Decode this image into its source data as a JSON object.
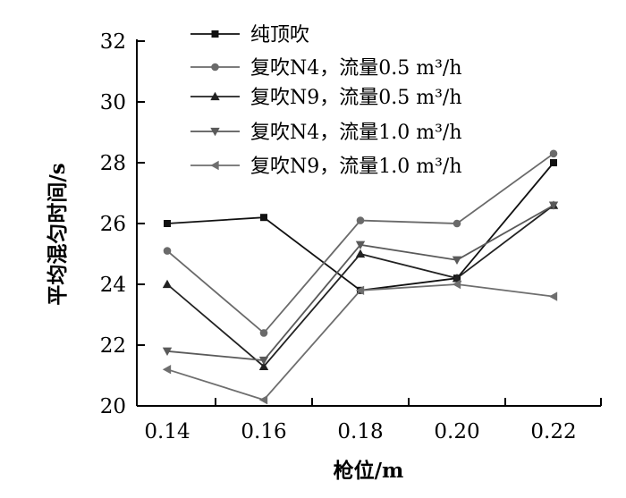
{
  "chart_data": {
    "type": "line",
    "xlabel": "枪位/m",
    "ylabel": "平均混匀时间/s",
    "x": [
      0.14,
      0.16,
      0.18,
      0.2,
      0.22
    ],
    "x_tick_labels": [
      "0.14",
      "0.16",
      "0.18",
      "0.20",
      "0.22"
    ],
    "y_ticks": [
      20,
      22,
      24,
      26,
      28,
      30,
      32
    ],
    "y_tick_labels": [
      "20",
      "22",
      "24",
      "26",
      "28",
      "30",
      "32"
    ],
    "xlim": [
      0.13,
      0.235
    ],
    "ylim": [
      20,
      32
    ],
    "grid": false,
    "legend_position": "top",
    "series": [
      {
        "name": "纯顶吹",
        "marker": "square",
        "color": "#111111",
        "values": [
          26.0,
          26.2,
          23.8,
          24.2,
          28.0
        ]
      },
      {
        "name": "复吹N4，流量0.5 m³/h",
        "marker": "circle",
        "color": "#6a6a6a",
        "values": [
          25.1,
          22.4,
          26.1,
          26.0,
          28.3
        ]
      },
      {
        "name": "复吹N9，流量0.5 m³/h",
        "marker": "triangle-up",
        "color": "#222222",
        "values": [
          24.0,
          21.3,
          25.0,
          24.2,
          26.6
        ]
      },
      {
        "name": "复吹N4，流量1.0 m³/h",
        "marker": "triangle-down",
        "color": "#5a5a5a",
        "values": [
          21.8,
          21.5,
          25.3,
          24.8,
          26.6
        ]
      },
      {
        "name": "复吹N9，流量1.0 m³/h",
        "marker": "triangle-left",
        "color": "#6e6e6e",
        "values": [
          21.2,
          20.2,
          23.8,
          24.0,
          23.6
        ]
      }
    ]
  }
}
